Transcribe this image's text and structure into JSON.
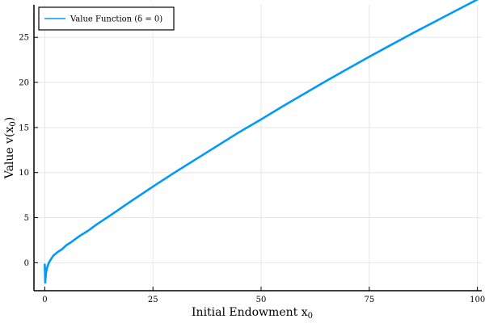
{
  "chart_data": {
    "type": "line",
    "xlabel": "Initial Endowment x",
    "xlabel_subscript": "0",
    "ylabel": "Value v(x",
    "ylabel_subscript": "0",
    "ylabel_close": ")",
    "xlim": [
      -2.5,
      101
    ],
    "ylim": [
      -3.1,
      28.6
    ],
    "x_ticks": [
      0,
      25,
      50,
      75,
      100
    ],
    "x_tick_labels": [
      "0",
      "25",
      "50",
      "75",
      "100"
    ],
    "y_ticks": [
      0,
      5,
      10,
      15,
      20,
      25
    ],
    "y_tick_labels": [
      "0",
      "5",
      "10",
      "15",
      "20",
      "25"
    ],
    "grid": true,
    "legend_position": "top-left",
    "series": [
      {
        "name": "Value Function (δ = 0)",
        "color": "#009af9",
        "x": [
          0,
          0.1,
          0.2,
          0.3,
          0.5,
          0.8,
          1,
          1.5,
          2,
          3,
          4,
          5,
          6,
          8,
          10,
          12,
          15,
          20,
          25,
          30,
          35,
          40,
          45,
          50,
          55,
          60,
          65,
          70,
          75,
          80,
          85,
          90,
          95,
          100
        ],
        "y": [
          -0.2,
          -2.2,
          -1.6,
          -1.1,
          -0.6,
          -0.2,
          0.05,
          0.45,
          0.8,
          1.2,
          1.5,
          1.95,
          2.25,
          2.95,
          3.55,
          4.25,
          5.2,
          6.85,
          8.45,
          10.0,
          11.5,
          13.0,
          14.5,
          15.9,
          17.35,
          18.75,
          20.15,
          21.5,
          22.85,
          24.15,
          25.45,
          26.7,
          27.95,
          29.2
        ]
      }
    ]
  }
}
